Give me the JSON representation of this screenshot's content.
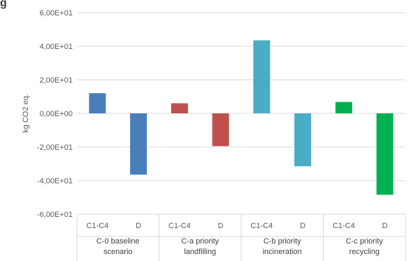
{
  "chart_data": {
    "type": "bar",
    "title": "",
    "ylabel": "kg CO2 eq.",
    "xlabel": "",
    "ylim": [
      -60,
      60
    ],
    "yticks": [
      -60,
      -40,
      -20,
      0,
      20,
      40,
      60
    ],
    "ytick_labels": [
      "-6,00E+01",
      "-4,00E+01",
      "-2,00E+01",
      "0,00E+00",
      "2,00E+01",
      "4,00E+01",
      "6,00E+01"
    ],
    "grid": true,
    "legend": "none",
    "groups": [
      {
        "label_lines": [
          "C-0 baseline",
          "scenario"
        ],
        "color": "#4a7ebb",
        "bars": [
          {
            "category": "C1-C4",
            "value": 12
          },
          {
            "category": "D",
            "value": -36.5
          }
        ]
      },
      {
        "label_lines": [
          "C-a priority",
          "landfilling"
        ],
        "color": "#c0504d",
        "bars": [
          {
            "category": "C1-C4",
            "value": 6
          },
          {
            "category": "D",
            "value": -19.5
          }
        ]
      },
      {
        "label_lines": [
          "C-b priority",
          "incineration"
        ],
        "color": "#4bacc6",
        "bars": [
          {
            "category": "C1-C4",
            "value": 43.5
          },
          {
            "category": "D",
            "value": -31.5
          }
        ]
      },
      {
        "label_lines": [
          "C-c priority",
          "recycling"
        ],
        "color": "#00b050",
        "bars": [
          {
            "category": "C1-C4",
            "value": 6.8
          },
          {
            "category": "D",
            "value": -48.5
          }
        ]
      }
    ]
  }
}
